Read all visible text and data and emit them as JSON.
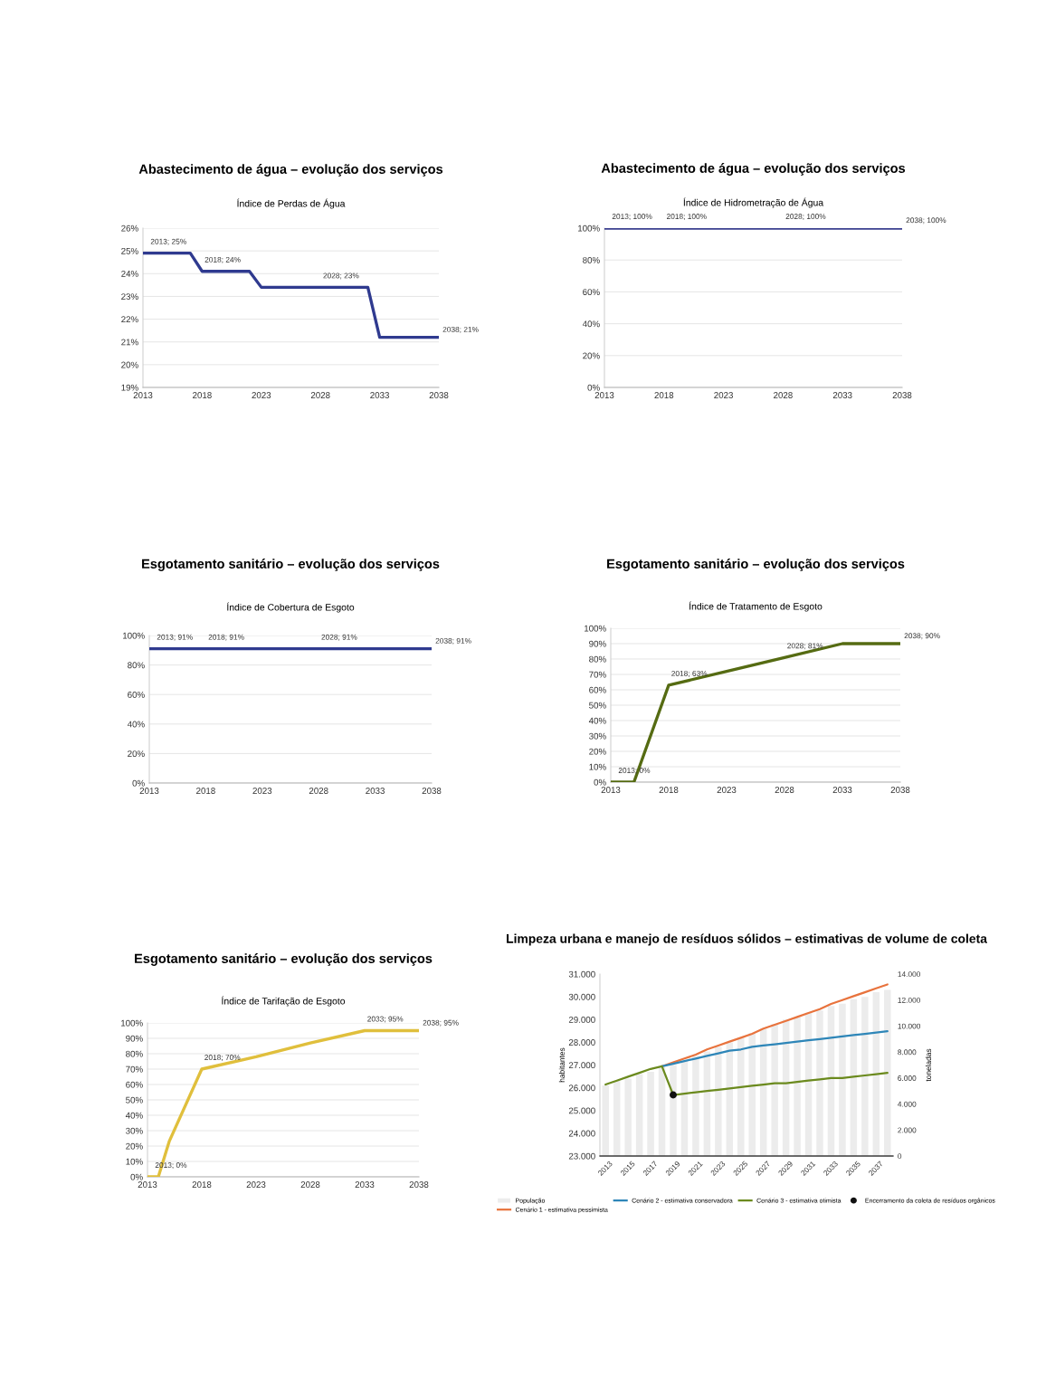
{
  "chart_data": [
    {
      "type": "line",
      "title": "Abastecimento de água – evolução dos serviços",
      "subtitle": "Índice de Perdas de Água",
      "xlim": [
        2013,
        2038
      ],
      "xticks": [
        2013,
        2018,
        2023,
        2028,
        2033,
        2038
      ],
      "ylim": [
        19,
        26
      ],
      "yticks": [
        {
          "value": 19,
          "label": "19%"
        },
        {
          "value": 20,
          "label": "20%"
        },
        {
          "value": 21,
          "label": "21%"
        },
        {
          "value": 22,
          "label": "22%"
        },
        {
          "value": 23,
          "label": "23%"
        },
        {
          "value": 24,
          "label": "24%"
        },
        {
          "value": 25,
          "label": "25%"
        },
        {
          "value": 26,
          "label": "26%"
        }
      ],
      "grid": "y",
      "series": [
        {
          "color": "#2f3a8f",
          "x": [
            2013,
            2017,
            2018,
            2022,
            2023,
            2028,
            2032,
            2033,
            2038
          ],
          "values": [
            24.9,
            24.9,
            24.1,
            24.1,
            23.4,
            23.4,
            23.4,
            21.2,
            21.2
          ],
          "value_labels": [
            "2013; 25%",
            null,
            "2018; 24%",
            null,
            null,
            "2028; 23%",
            null,
            null,
            "2038; 21%"
          ]
        }
      ]
    },
    {
      "type": "line",
      "title": "Abastecimento de água – evolução dos serviços",
      "subtitle": "Índice de Hidrometração de Água",
      "xlim": [
        2013,
        2038
      ],
      "xticks": [
        2013,
        2018,
        2023,
        2028,
        2033,
        2038
      ],
      "ylim": [
        0,
        100
      ],
      "yticks": [
        {
          "value": 0,
          "label": "0%"
        },
        {
          "value": 20,
          "label": "20%"
        },
        {
          "value": 40,
          "label": "40%"
        },
        {
          "value": 60,
          "label": "60%"
        },
        {
          "value": 80,
          "label": "80%"
        },
        {
          "value": 100,
          "label": "100%"
        }
      ],
      "grid": "y",
      "series": [
        {
          "color": "#3b3f8f",
          "x": [
            2013,
            2018,
            2023,
            2028,
            2033,
            2038
          ],
          "values": [
            100,
            100,
            100,
            100,
            100,
            100
          ],
          "value_labels": [
            "2013; 100%",
            "2018; 100%",
            null,
            "2028; 100%",
            null,
            "2038; 100%"
          ]
        }
      ]
    },
    {
      "type": "line",
      "title": "Esgotamento sanitário – evolução dos serviços",
      "subtitle": "Índice de Cobertura de Esgoto",
      "xlim": [
        2013,
        2038
      ],
      "xticks": [
        2013,
        2018,
        2023,
        2028,
        2033,
        2038
      ],
      "ylim": [
        0,
        100
      ],
      "yticks": [
        {
          "value": 0,
          "label": "0%"
        },
        {
          "value": 20,
          "label": "20%"
        },
        {
          "value": 40,
          "label": "40%"
        },
        {
          "value": 60,
          "label": "60%"
        },
        {
          "value": 80,
          "label": "80%"
        },
        {
          "value": 100,
          "label": "100%"
        }
      ],
      "grid": "y",
      "series": [
        {
          "color": "#2f3a8f",
          "x": [
            2013,
            2018,
            2023,
            2028,
            2033,
            2038
          ],
          "values": [
            91,
            91,
            91,
            91,
            91,
            91
          ],
          "value_labels": [
            "2013; 91%",
            "2018; 91%",
            null,
            "2028; 91%",
            null,
            "2038; 91%"
          ]
        }
      ]
    },
    {
      "type": "line",
      "title": "Esgotamento sanitário – evolução dos serviços",
      "subtitle": "Índice de Tratamento de Esgoto",
      "xlim": [
        2013,
        2038
      ],
      "xticks": [
        2013,
        2018,
        2023,
        2028,
        2033,
        2038
      ],
      "ylim": [
        0,
        100
      ],
      "yticks": [
        {
          "value": 0,
          "label": "0%"
        },
        {
          "value": 10,
          "label": "10%"
        },
        {
          "value": 20,
          "label": "20%"
        },
        {
          "value": 30,
          "label": "30%"
        },
        {
          "value": 40,
          "label": "40%"
        },
        {
          "value": 50,
          "label": "50%"
        },
        {
          "value": 60,
          "label": "60%"
        },
        {
          "value": 70,
          "label": "70%"
        },
        {
          "value": 80,
          "label": "80%"
        },
        {
          "value": 90,
          "label": "90%"
        },
        {
          "value": 100,
          "label": "100%"
        }
      ],
      "grid": "y",
      "series": [
        {
          "color": "#556b12",
          "x": [
            2013,
            2015,
            2018,
            2023,
            2028,
            2033,
            2038
          ],
          "values": [
            0,
            0,
            63,
            72,
            81,
            90,
            90
          ],
          "value_labels": [
            "2013; 0%",
            null,
            "2018; 63%",
            null,
            "2028; 81%",
            null,
            "2038; 90%"
          ]
        }
      ]
    },
    {
      "type": "line",
      "title": "Esgotamento sanitário – evolução dos serviços",
      "subtitle": "Índice de Tarifação de Esgoto",
      "xlim": [
        2013,
        2038
      ],
      "xticks": [
        2013,
        2018,
        2023,
        2028,
        2033,
        2038
      ],
      "ylim": [
        0,
        100
      ],
      "yticks": [
        {
          "value": 0,
          "label": "0%"
        },
        {
          "value": 10,
          "label": "10%"
        },
        {
          "value": 20,
          "label": "20%"
        },
        {
          "value": 30,
          "label": "30%"
        },
        {
          "value": 40,
          "label": "40%"
        },
        {
          "value": 50,
          "label": "50%"
        },
        {
          "value": 60,
          "label": "60%"
        },
        {
          "value": 70,
          "label": "70%"
        },
        {
          "value": 80,
          "label": "80%"
        },
        {
          "value": 90,
          "label": "90%"
        },
        {
          "value": 100,
          "label": "100%"
        }
      ],
      "grid": "y",
      "series": [
        {
          "color": "#e0bf3c",
          "x": [
            2013,
            2014,
            2015,
            2018,
            2023,
            2028,
            2033,
            2038
          ],
          "values": [
            0,
            0,
            23,
            70,
            78,
            87,
            95,
            95
          ],
          "value_labels": [
            "2013; 0%",
            null,
            null,
            "2018; 70%",
            null,
            null,
            "2033; 95%",
            "2038; 95%"
          ]
        }
      ]
    },
    {
      "type": "line",
      "title": "Limpeza urbana e manejo de resíduos sólidos – estimativas de volume de coleta",
      "ylabel": "habitantes",
      "y2label": "toneladas",
      "legend": "bottom",
      "categories": [
        "2013",
        null,
        "2015",
        null,
        "2017",
        null,
        "2019",
        null,
        "2021",
        null,
        "2023",
        null,
        "2025",
        null,
        "2027",
        null,
        "2029",
        null,
        "2031",
        null,
        "2033",
        null,
        "2035",
        null,
        "2037",
        null
      ],
      "ylim": [
        23000,
        31000
      ],
      "yticks": [
        {
          "value": 23000,
          "label": "23.000"
        },
        {
          "value": 24000,
          "label": "24.000"
        },
        {
          "value": 25000,
          "label": "25.000"
        },
        {
          "value": 26000,
          "label": "26.000"
        },
        {
          "value": 27000,
          "label": "27.000"
        },
        {
          "value": 28000,
          "label": "28.000"
        },
        {
          "value": 29000,
          "label": "29.000"
        },
        {
          "value": 30000,
          "label": "30.000"
        },
        {
          "value": 31000,
          "label": "31.000"
        }
      ],
      "y2lim": [
        0,
        14000
      ],
      "y2ticks": [
        0,
        {
          "value": 2000,
          "label": "2.000"
        },
        {
          "value": 4000,
          "label": "4.000"
        },
        {
          "value": 6000,
          "label": "6.000"
        },
        {
          "value": 8000,
          "label": "8.000"
        },
        {
          "value": 10000,
          "label": "10.000"
        },
        {
          "value": 12000,
          "label": "12.000"
        },
        {
          "value": 14000,
          "label": "14.000"
        }
      ],
      "series": [
        {
          "type": "bar",
          "name": "População",
          "color": "#ececec",
          "values": [
            26100,
            26300,
            26400,
            26600,
            26700,
            26900,
            27000,
            27200,
            27400,
            27600,
            27800,
            28000,
            28200,
            28400,
            28600,
            28800,
            29000,
            29100,
            29300,
            29400,
            29600,
            29700,
            29900,
            30000,
            30200,
            30300
          ]
        },
        {
          "type": "line",
          "axis": "y2",
          "name": "Cenário 1 - estimativa pessimista",
          "color": "#e8733d",
          "values": [
            null,
            null,
            null,
            null,
            null,
            6900,
            7200,
            7500,
            7800,
            8200,
            8500,
            8800,
            9100,
            9400,
            9800,
            10100,
            10400,
            10700,
            11000,
            11300,
            11700,
            12000,
            12300,
            12600,
            12900,
            13200
          ]
        },
        {
          "type": "line",
          "axis": "y2",
          "name": "Cenário 2 - estimativa conservadora",
          "color": "#2e86b8",
          "values": [
            null,
            null,
            null,
            null,
            null,
            6900,
            7100,
            7300,
            7500,
            7700,
            7900,
            8100,
            8200,
            8400,
            8500,
            8600,
            8700,
            8800,
            8900,
            9000,
            9100,
            9200,
            9300,
            9400,
            9500,
            9600
          ]
        },
        {
          "type": "line",
          "axis": "y2",
          "name": "Cenário 3 - estimativa otimista",
          "color": "#6b8a1e",
          "values": [
            5500,
            5800,
            6100,
            6400,
            6700,
            6900,
            4700,
            4800,
            4900,
            5000,
            5100,
            5200,
            5300,
            5400,
            5500,
            5600,
            5600,
            5700,
            5800,
            5900,
            6000,
            6000,
            6100,
            6200,
            6300,
            6400
          ]
        },
        {
          "type": "scatter",
          "axis": "y2",
          "name": "Encerramento da coleta de resíduos orgânicos",
          "color": "#111111",
          "marker": "circle",
          "values": [
            null,
            null,
            null,
            null,
            null,
            null,
            4700,
            null,
            null,
            null,
            null,
            null,
            null,
            null,
            null,
            null,
            null,
            null,
            null,
            null,
            null,
            null,
            null,
            null,
            null,
            null
          ]
        }
      ]
    }
  ]
}
